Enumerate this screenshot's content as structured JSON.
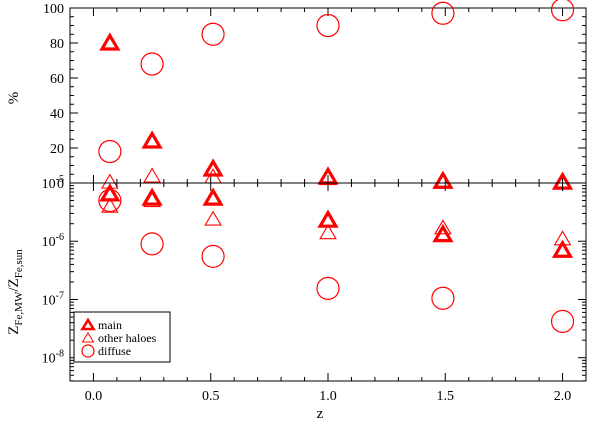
{
  "chart_data": [
    {
      "type": "scatter",
      "panel": "top",
      "xlabel": "",
      "ylabel": "%",
      "xlim": [
        -0.1,
        2.1
      ],
      "ylim": [
        0,
        100
      ],
      "yscale": "linear",
      "yticks": [
        0,
        20,
        40,
        60,
        80,
        100
      ],
      "ytick_labels": [
        "0",
        "20",
        "40",
        "60",
        "80",
        "100"
      ],
      "series": [
        {
          "name": "main",
          "marker": "triangle-thick",
          "color": "#ff0000",
          "x": [
            0.07,
            0.25,
            0.51,
            1.0,
            1.49,
            2.0
          ],
          "y": [
            80,
            24,
            8,
            3.5,
            1,
            0.5
          ]
        },
        {
          "name": "other haloes",
          "marker": "triangle-thin",
          "color": "#ff0000",
          "x": [
            0.07,
            0.25,
            0.51,
            1.0,
            1.49,
            2.0
          ],
          "y": [
            0.5,
            4,
            3.5,
            2.5,
            0.5,
            0.3
          ]
        },
        {
          "name": "diffuse",
          "marker": "circle",
          "color": "#ff0000",
          "x": [
            0.07,
            0.25,
            0.51,
            1.0,
            1.49,
            2.0
          ],
          "y": [
            18,
            68,
            85,
            90,
            97,
            99
          ]
        }
      ]
    },
    {
      "type": "scatter",
      "panel": "bottom",
      "xlabel": "z",
      "ylabel": "Z_Fe,MW/Z_Fe,sun",
      "ylabel_main_1": "Z",
      "ylabel_sub_1": "Fe,MW",
      "ylabel_main_2": "/Z",
      "ylabel_sub_2": "Fe,sun",
      "xlim": [
        -0.1,
        2.1
      ],
      "ylim_log10": [
        -8.4,
        -5.0
      ],
      "yscale": "log",
      "xticks": [
        0.0,
        0.5,
        1.0,
        1.5,
        2.0
      ],
      "xtick_labels": [
        "0.0",
        "0.5",
        "1.0",
        "1.5",
        "2.0"
      ],
      "ytick_labels": [
        {
          "base": "10",
          "exp": "-5"
        },
        {
          "base": "10",
          "exp": "-6"
        },
        {
          "base": "10",
          "exp": "-7"
        },
        {
          "base": "10",
          "exp": "-8"
        }
      ],
      "legend_position": "bottom-left",
      "series": [
        {
          "name": "main",
          "marker": "triangle-thick",
          "color": "#ff0000",
          "x": [
            0.07,
            0.25,
            0.51,
            1.0,
            1.49,
            2.0
          ],
          "y": [
            6.5e-06,
            5.5e-06,
            5.5e-06,
            2.3e-06,
            1.3e-06,
            7e-07
          ]
        },
        {
          "name": "other haloes",
          "marker": "triangle-thin",
          "color": "#ff0000",
          "x": [
            0.07,
            0.25,
            0.51,
            1.0,
            1.49,
            2.0
          ],
          "y": [
            4e-06,
            5e-06,
            2.4e-06,
            1.4e-06,
            1.7e-06,
            1.1e-06
          ]
        },
        {
          "name": "diffuse",
          "marker": "circle",
          "color": "#ff0000",
          "x": [
            0.07,
            0.25,
            0.51,
            1.0,
            1.49,
            2.0
          ],
          "y": [
            5e-06,
            9e-07,
            5.5e-07,
            1.55e-07,
            1.05e-07,
            4.2e-08
          ]
        }
      ]
    }
  ]
}
